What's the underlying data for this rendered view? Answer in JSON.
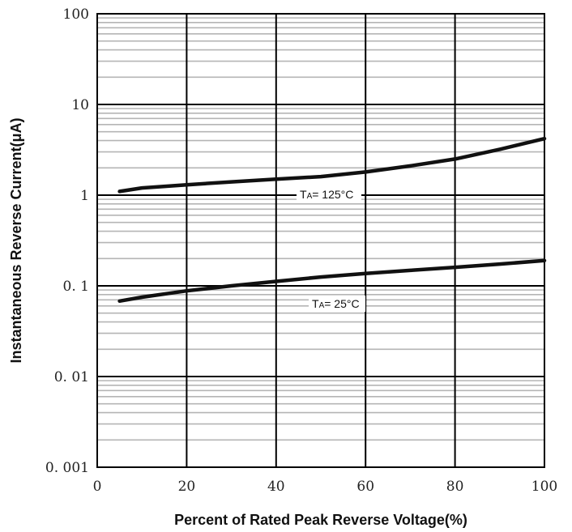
{
  "chart_data": {
    "type": "line",
    "title": "",
    "xlabel": "Percent of Rated Peak Reverse Voltage(%)",
    "ylabel": "Instantaneous Reverse Current(μA)",
    "xlim": [
      0,
      100
    ],
    "ylim": [
      0.001,
      100
    ],
    "yscale": "log",
    "grid": true,
    "x_ticks": [
      "0",
      "20",
      "40",
      "60",
      "80",
      "100"
    ],
    "y_ticks": [
      "100",
      "10",
      "1",
      "0. 1",
      "0. 01",
      "0. 001"
    ],
    "series": [
      {
        "name": "TA=125°C",
        "label_main": "T",
        "label_sub": "A",
        "label_rest": "= 125°C",
        "x": [
          5,
          10,
          20,
          30,
          40,
          50,
          60,
          70,
          80,
          90,
          100
        ],
        "y": [
          1.1,
          1.2,
          1.3,
          1.4,
          1.5,
          1.6,
          1.8,
          2.1,
          2.5,
          3.2,
          4.2
        ]
      },
      {
        "name": "TA=25°C",
        "label_main": "T",
        "label_sub": "A",
        "label_rest": "= 25°C",
        "x": [
          5,
          10,
          20,
          30,
          40,
          50,
          60,
          70,
          80,
          90,
          100
        ],
        "y": [
          0.068,
          0.075,
          0.088,
          0.1,
          0.112,
          0.125,
          0.137,
          0.148,
          0.16,
          0.174,
          0.19
        ]
      }
    ]
  }
}
